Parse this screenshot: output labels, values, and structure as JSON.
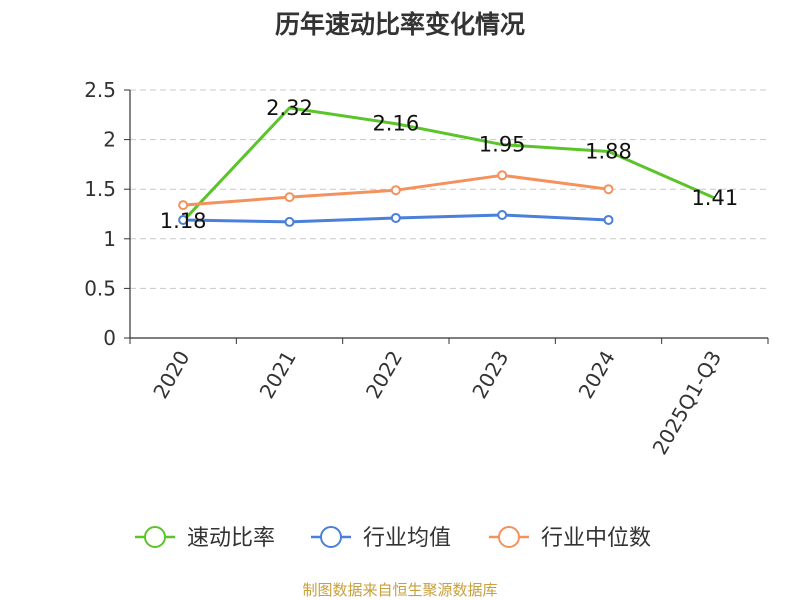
{
  "chart_data": {
    "type": "line",
    "title": "历年速动比率变化情况",
    "categories": [
      "2020",
      "2021",
      "2022",
      "2023",
      "2024",
      "2025Q1-Q3"
    ],
    "ylim": [
      0,
      2.5
    ],
    "yticks": [
      "0",
      "0.5",
      "1",
      "1.5",
      "2",
      "2.5"
    ],
    "grid": true,
    "legend_position": "bottom",
    "series": [
      {
        "name": "速动比率",
        "color": "#5bc42a",
        "values": [
          1.18,
          2.32,
          2.16,
          1.95,
          1.88,
          1.41
        ],
        "labels": [
          "1.18",
          "2.32",
          "2.16",
          "1.95",
          "1.88",
          "1.41"
        ]
      },
      {
        "name": "行业均值",
        "color": "#4a80d9",
        "values": [
          1.19,
          1.17,
          1.21,
          1.24,
          1.19,
          null
        ]
      },
      {
        "name": "行业中位数",
        "color": "#f4915c",
        "values": [
          1.34,
          1.42,
          1.49,
          1.64,
          1.5,
          null
        ]
      }
    ]
  },
  "footer": {
    "source": "制图数据来自恒生聚源数据库"
  }
}
